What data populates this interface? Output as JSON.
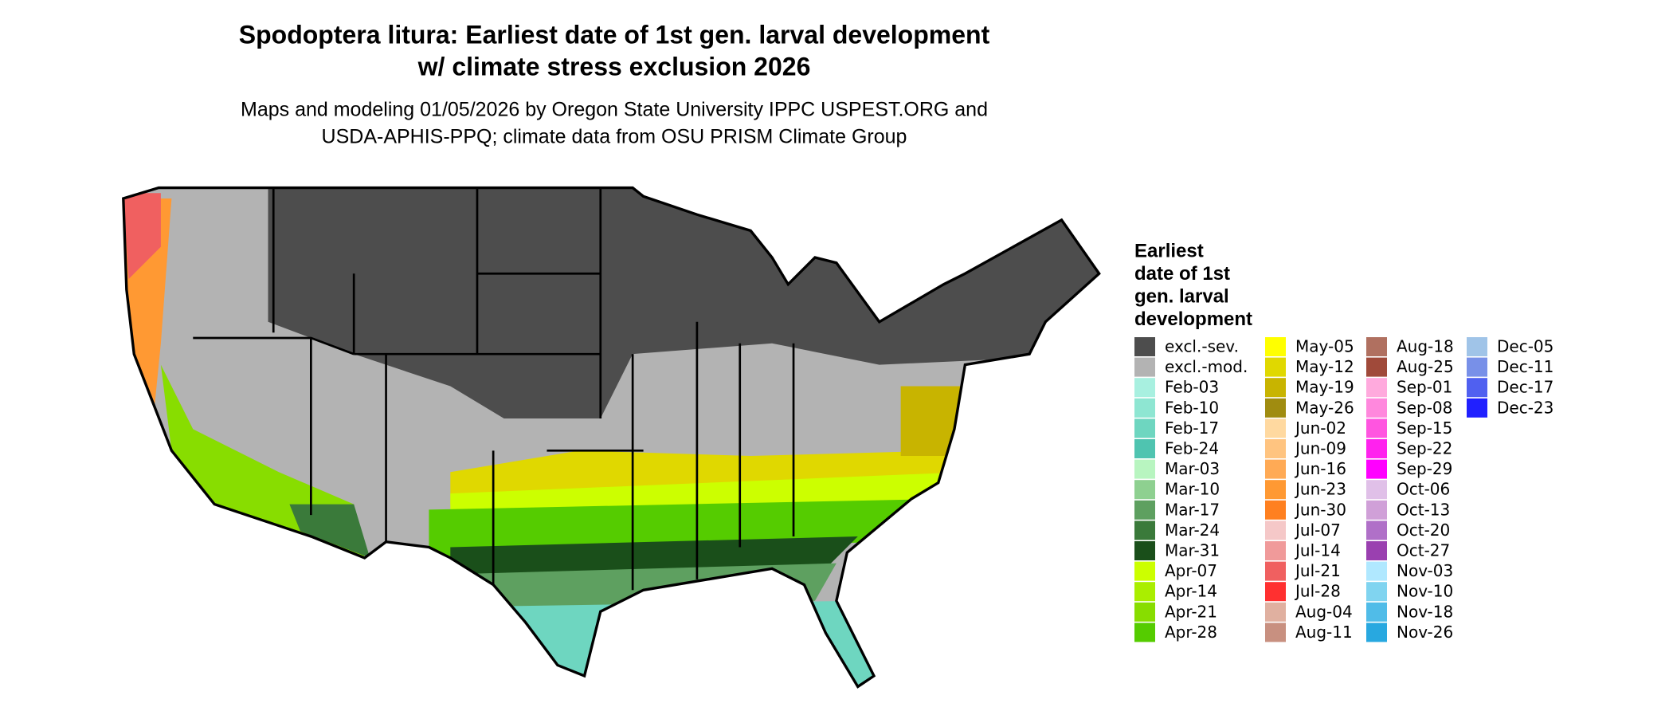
{
  "title": [
    "Spodoptera litura: Earliest date of 1st gen. larval development",
    "w/ climate stress exclusion 2026"
  ],
  "subtitle": [
    "Maps and modeling 01/05/2026 by Oregon State University IPPC USPEST.ORG and",
    "USDA-APHIS-PPQ; climate data from OSU PRISM Climate Group"
  ],
  "legend": {
    "title": [
      "Earliest",
      "date of 1st",
      "gen. larval",
      "development"
    ],
    "items": [
      {
        "label": "excl.-sev.",
        "color": "#4d4d4d"
      },
      {
        "label": "excl.-mod.",
        "color": "#b3b3b3"
      },
      {
        "label": "Feb-03",
        "color": "#a8f0e0"
      },
      {
        "label": "Feb-10",
        "color": "#8ee6d2"
      },
      {
        "label": "Feb-17",
        "color": "#6ed6c0"
      },
      {
        "label": "Feb-24",
        "color": "#4fc4b0"
      },
      {
        "label": "Mar-03",
        "color": "#b8f5c0"
      },
      {
        "label": "Mar-10",
        "color": "#8ed090"
      },
      {
        "label": "Mar-17",
        "color": "#5ea060"
      },
      {
        "label": "Mar-24",
        "color": "#3a7a3a"
      },
      {
        "label": "Mar-31",
        "color": "#1a4f1a"
      },
      {
        "label": "Apr-07",
        "color": "#ccff00"
      },
      {
        "label": "Apr-14",
        "color": "#aaee00"
      },
      {
        "label": "Apr-21",
        "color": "#88dd00"
      },
      {
        "label": "Apr-28",
        "color": "#55cc00"
      },
      {
        "label": "May-05",
        "color": "#ffff00"
      },
      {
        "label": "May-12",
        "color": "#e0d800"
      },
      {
        "label": "May-19",
        "color": "#c8b400"
      },
      {
        "label": "May-26",
        "color": "#a08c10"
      },
      {
        "label": "Jun-02",
        "color": "#ffd9a0"
      },
      {
        "label": "Jun-09",
        "color": "#ffc480"
      },
      {
        "label": "Jun-16",
        "color": "#ffaa55"
      },
      {
        "label": "Jun-23",
        "color": "#ff9933"
      },
      {
        "label": "Jun-30",
        "color": "#ff8020"
      },
      {
        "label": "Jul-07",
        "color": "#f5c8c8"
      },
      {
        "label": "Jul-14",
        "color": "#f09a9a"
      },
      {
        "label": "Jul-21",
        "color": "#f06060"
      },
      {
        "label": "Jul-28",
        "color": "#ff3030"
      },
      {
        "label": "Aug-04",
        "color": "#e0b0a0"
      },
      {
        "label": "Aug-11",
        "color": "#c89080"
      },
      {
        "label": "Aug-18",
        "color": "#b07060"
      },
      {
        "label": "Aug-25",
        "color": "#a04a3a"
      },
      {
        "label": "Sep-01",
        "color": "#ffaadd"
      },
      {
        "label": "Sep-08",
        "color": "#ff88dd"
      },
      {
        "label": "Sep-15",
        "color": "#ff55e0"
      },
      {
        "label": "Sep-22",
        "color": "#ff22ee"
      },
      {
        "label": "Sep-29",
        "color": "#ff00ff"
      },
      {
        "label": "Oct-06",
        "color": "#e0c0e8"
      },
      {
        "label": "Oct-13",
        "color": "#d0a0d8"
      },
      {
        "label": "Oct-20",
        "color": "#b070c8"
      },
      {
        "label": "Oct-27",
        "color": "#9a40b0"
      },
      {
        "label": "Nov-03",
        "color": "#b0e8ff"
      },
      {
        "label": "Nov-10",
        "color": "#80d4f0"
      },
      {
        "label": "Nov-18",
        "color": "#50bce8"
      },
      {
        "label": "Nov-26",
        "color": "#28a8e0"
      },
      {
        "label": "Dec-05",
        "color": "#a0c4e8"
      },
      {
        "label": "Dec-11",
        "color": "#7890e8"
      },
      {
        "label": "Dec-17",
        "color": "#5060f0"
      },
      {
        "label": "Dec-23",
        "color": "#2020ff"
      }
    ]
  }
}
